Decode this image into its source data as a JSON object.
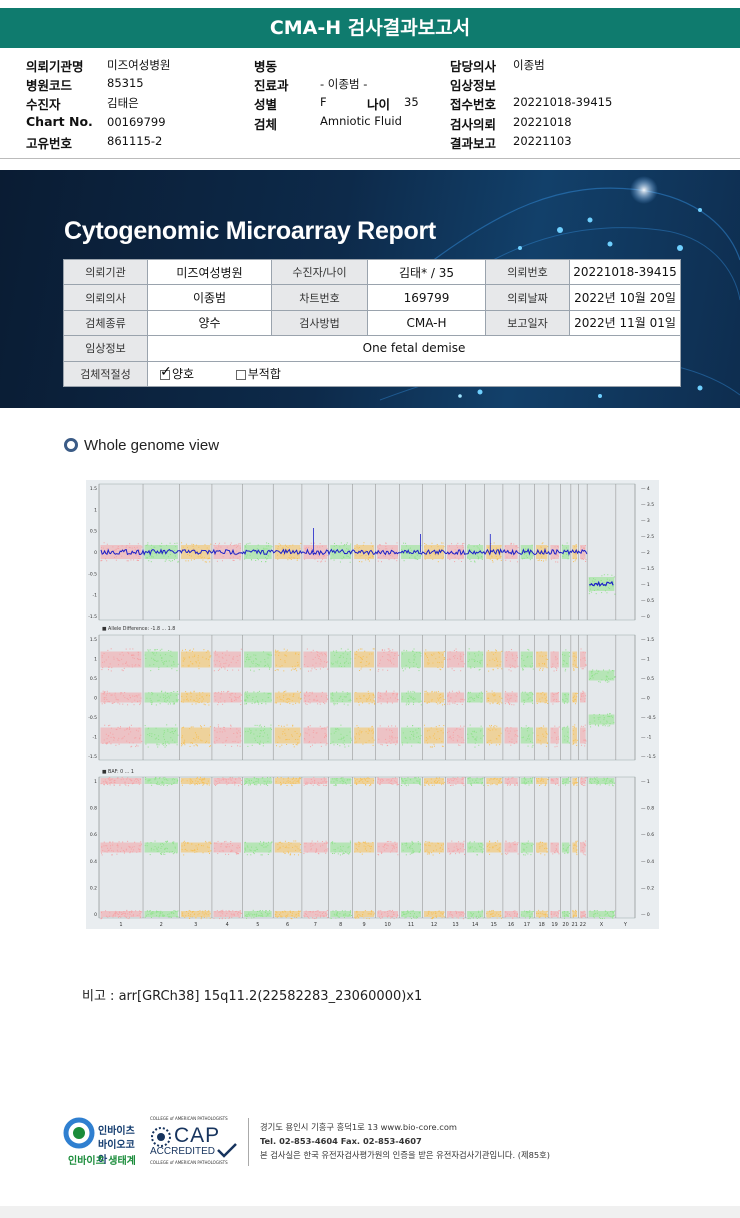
{
  "report_title": "CMA-H 검사결과보고서",
  "header": {
    "rows": [
      {
        "k1": "의뢰기관명",
        "v1": "미즈여성병원",
        "k2": "병동",
        "v2": "",
        "k3": "담당의사",
        "v3": "이종범"
      },
      {
        "k1": "병원코드",
        "v1": "85315",
        "k2": "진료과",
        "v2": "- 이종범 -",
        "k3": "임상정보",
        "v3": ""
      },
      {
        "k1": "수진자",
        "v1": "김태은",
        "k2": "성별",
        "v2": "F",
        "k3": "접수번호",
        "v3": "20221018-39415"
      },
      {
        "k1": "Chart No.",
        "v1": "00169799",
        "k2": "검체",
        "v2": "Amniotic Fluid",
        "k3": "검사의뢰",
        "v3": "20221018"
      },
      {
        "k1": "고유번호",
        "v1": "861115-2",
        "k2": "",
        "v2": "",
        "k3": "결과보고",
        "v3": "20221103"
      }
    ],
    "age_label": "나이",
    "age_value": "35"
  },
  "banner": {
    "title": "Cytogenomic Microarray Report",
    "table": {
      "r1": [
        "의뢰기관",
        "미즈여성병원",
        "수진자/나이",
        "김태* / 35",
        "의뢰번호",
        "20221018-39415"
      ],
      "r2": [
        "의뢰의사",
        "이종범",
        "차트번호",
        "169799",
        "의뢰날짜",
        "2022년 10월 20일"
      ],
      "r3": [
        "검체종류",
        "양수",
        "검사방법",
        "CMA-H",
        "보고일자",
        "2022년 11월 01일"
      ],
      "r4": [
        "임상정보",
        "One fetal demise"
      ],
      "r5": [
        "검체적절성",
        "양호",
        "부적합"
      ]
    },
    "adequacy_checked": "양호"
  },
  "section_title": "Whole genome view",
  "plot_panels": {
    "panel1": {
      "left_ticks": [
        "1.5",
        "1",
        "0.5",
        "0",
        "-0.5",
        "-1",
        "-1.5"
      ],
      "right_ticks": [
        "4",
        "3.5",
        "3",
        "2.5",
        "2",
        "1.5",
        "1",
        "0.5",
        "0"
      ]
    },
    "panel2": {
      "label": "Allele Difference: -1.8 ... 1.8",
      "left_ticks": [
        "1.5",
        "1",
        "0.5",
        "0",
        "-0.5",
        "-1",
        "-1.5"
      ],
      "right_ticks": [
        "1.5",
        "1",
        "0.5",
        "0",
        "-0.5",
        "-1",
        "-1.5"
      ]
    },
    "panel3": {
      "label": "BAF: 0 ... 1",
      "left_ticks": [
        "1",
        "0.8",
        "0.6",
        "0.4",
        "0.2",
        "0"
      ],
      "right_ticks": [
        "1",
        "0.8",
        "0.6",
        "0.4",
        "0.2",
        "0"
      ]
    },
    "chromosomes": [
      "1",
      "2",
      "3",
      "4",
      "5",
      "6",
      "7",
      "8",
      "9",
      "10",
      "11",
      "12",
      "13",
      "14",
      "15",
      "16",
      "17",
      "18",
      "19",
      "20",
      "21",
      "22",
      "X",
      "Y"
    ]
  },
  "note": "비고 : arr[GRCh38] 15q11.2(22582283_23060000)x1",
  "footer": {
    "logo_line1": "인바이츠",
    "logo_line2": "바이오코아",
    "logo_line3": "인바이츠 생태계",
    "cap_top": "COLLEGE of AMERICAN PATHOLOGISTS",
    "cap_big": "CAP",
    "cap_accredited": "ACCREDITED",
    "cap_bottom": "COLLEGE of AMERICAN PATHOLOGISTS",
    "address": "경기도 용인시 기흥구 흥덕1로 13   www.bio-core.com",
    "tel": "Tel. 02-853-4604   Fax. 02-853-4607",
    "disclaimer": "본 검사실은 한국 유전자검사평가원의 인증을 받은 유전자검사기관입니다. (제85호)"
  },
  "colors": {
    "title_bar": "#0f7b6e",
    "pink": "#f4a3a6",
    "green": "#8fe28a",
    "orange": "#f5c05a",
    "trace": "#1b1fc8"
  }
}
